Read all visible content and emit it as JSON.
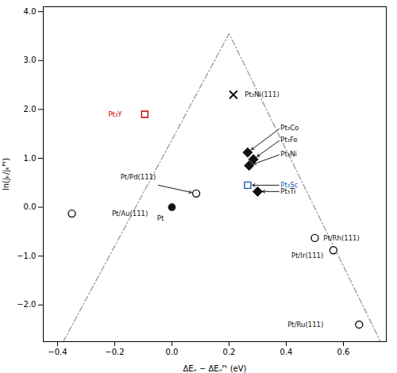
{
  "chart_data": {
    "type": "scatter",
    "xlabel": "ΔEₒ − ΔEₒᴾᵗ (eV)",
    "ylabel": "ln(jₖ/jₖᴾᵗ)",
    "xlim": [
      -0.45,
      0.75
    ],
    "ylim": [
      -2.75,
      4.1
    ],
    "xticks": [
      -0.4,
      -0.2,
      0.0,
      0.2,
      0.4,
      0.6
    ],
    "yticks": [
      -2,
      -1,
      0,
      1,
      2,
      3,
      4
    ],
    "grid": false,
    "series": [
      {
        "type": "line",
        "line_style": "dashdot",
        "color": "#999999",
        "x": [
          -0.38,
          0.2,
          0.73
        ],
        "y": [
          -2.75,
          3.55,
          -2.75
        ]
      },
      {
        "type": "scatter",
        "marker": "open_circle",
        "color": "#111111",
        "x": [
          -0.35,
          0.085,
          0.5,
          0.565,
          0.655
        ],
        "y": [
          -0.13,
          0.28,
          -0.63,
          -0.88,
          -2.4
        ],
        "labels": [
          "Pt/Au(111)",
          "Pt/Pd(111)",
          "Pt/Rh(111)",
          "Pt/Ir(111)",
          "Pt/Ru(111)"
        ],
        "label_x": [
          -0.21,
          -0.18,
          0.53,
          0.53,
          0.53
        ],
        "label_y": [
          -0.13,
          0.62,
          -0.63,
          -1.0,
          -2.4
        ],
        "arrows": [
          false,
          true,
          false,
          false,
          false
        ]
      },
      {
        "type": "scatter",
        "marker": "filled_circle",
        "color": "#111111",
        "x": [
          0.0
        ],
        "y": [
          0.0
        ],
        "labels": [
          "Pt"
        ],
        "label_x": [
          -0.04
        ],
        "label_y": [
          -0.18
        ],
        "arrows": [
          false
        ]
      },
      {
        "type": "scatter",
        "marker": "x",
        "color": "#111111",
        "x": [
          0.215
        ],
        "y": [
          2.3
        ],
        "labels": [
          "Pt₃Ni(111)"
        ],
        "label_x": [
          0.255
        ],
        "label_y": [
          2.3
        ],
        "arrows": [
          false
        ]
      },
      {
        "type": "scatter",
        "marker": "open_square",
        "color": "#cc0000",
        "x": [
          -0.095
        ],
        "y": [
          1.9
        ],
        "labels": [
          "Pt₃Y"
        ],
        "label_x": [
          -0.175
        ],
        "label_y": [
          1.9
        ],
        "arrows": [
          false
        ]
      },
      {
        "type": "scatter",
        "marker": "open_square",
        "color": "#2255bb",
        "x": [
          0.265
        ],
        "y": [
          0.45
        ],
        "labels": [
          "Pt₃Sc"
        ],
        "label_x": [
          0.38
        ],
        "label_y": [
          0.45
        ],
        "arrows": [
          true
        ]
      },
      {
        "type": "scatter",
        "marker": "filled_diamond",
        "color": "#111111",
        "x": [
          0.265,
          0.285,
          0.27,
          0.3
        ],
        "y": [
          1.12,
          0.98,
          0.85,
          0.32
        ],
        "labels": [
          "Pt₃Co",
          "Pt₃Fe",
          "Pt₃Ni",
          "Pt₃Ti"
        ],
        "label_x": [
          0.38,
          0.38,
          0.38,
          0.38
        ],
        "label_y": [
          1.62,
          1.38,
          1.08,
          0.32
        ],
        "arrows": [
          true,
          true,
          true,
          true
        ]
      }
    ]
  }
}
